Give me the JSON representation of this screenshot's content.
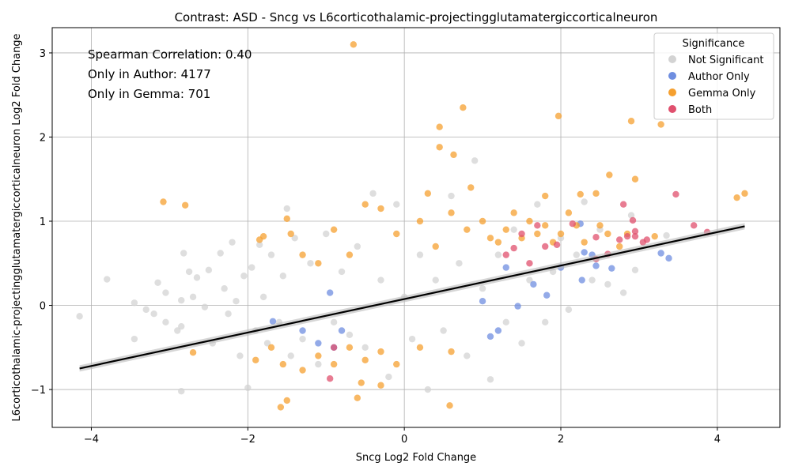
{
  "chart_data": {
    "type": "scatter",
    "title": "Contrast: ASD - Sncg vs L6corticothalamic-projectingglutamatergiccorticalneuron",
    "xlabel": "Sncg Log2 Fold Change",
    "ylabel": "L6corticothalamic-projectingglutamatergiccorticalneuron Log2 Fold Change",
    "xlim": [
      -4.5,
      4.8
    ],
    "ylim": [
      -1.45,
      3.3
    ],
    "xticks": [
      -4,
      -2,
      0,
      2,
      4
    ],
    "yticks": [
      -1,
      0,
      1,
      2,
      3
    ],
    "grid": true,
    "annotations": [
      "Spearman Correlation: 0.40",
      "Only in Author: 4177",
      "Only in Gemma: 701"
    ],
    "legend": {
      "title": "Significance",
      "position": "top-right",
      "entries": [
        "Not Significant",
        "Author Only",
        "Gemma Only",
        "Both"
      ]
    },
    "fit_line": {
      "x": [
        -4.15,
        4.35
      ],
      "y": [
        -0.75,
        0.94
      ]
    },
    "series": [
      {
        "name": "Not Significant",
        "color": "#d3d3d3",
        "points": [
          [
            -4.15,
            -0.13
          ],
          [
            -3.8,
            0.31
          ],
          [
            -3.45,
            0.03
          ],
          [
            -3.45,
            -0.4
          ],
          [
            -3.3,
            -0.05
          ],
          [
            -3.2,
            -0.1
          ],
          [
            -3.15,
            0.27
          ],
          [
            -3.05,
            0.15
          ],
          [
            -3.05,
            -0.2
          ],
          [
            -2.9,
            -0.3
          ],
          [
            -2.85,
            0.06
          ],
          [
            -2.85,
            -0.25
          ],
          [
            -2.82,
            0.62
          ],
          [
            -2.75,
            0.4
          ],
          [
            -2.7,
            0.1
          ],
          [
            -2.65,
            0.33
          ],
          [
            -2.55,
            -0.02
          ],
          [
            -2.5,
            0.42
          ],
          [
            -2.45,
            -0.45
          ],
          [
            -2.35,
            0.62
          ],
          [
            -2.3,
            0.2
          ],
          [
            -2.25,
            -0.1
          ],
          [
            -2.2,
            0.75
          ],
          [
            -2.15,
            0.05
          ],
          [
            -2.1,
            -0.6
          ],
          [
            -2.05,
            0.35
          ],
          [
            -2.0,
            -0.98
          ],
          [
            -1.95,
            0.45
          ],
          [
            -1.9,
            -0.3
          ],
          [
            -1.85,
            0.72
          ],
          [
            -1.8,
            0.1
          ],
          [
            -1.75,
            -0.45
          ],
          [
            -1.7,
            0.6
          ],
          [
            -1.6,
            -0.2
          ],
          [
            -1.55,
            0.35
          ],
          [
            -1.5,
            1.15
          ],
          [
            -1.45,
            -0.6
          ],
          [
            -1.4,
            0.8
          ],
          [
            -1.3,
            -0.4
          ],
          [
            -1.2,
            0.5
          ],
          [
            -1.1,
            -0.7
          ],
          [
            -1.0,
            0.85
          ],
          [
            -0.9,
            -0.2
          ],
          [
            -0.8,
            0.4
          ],
          [
            -0.7,
            -0.35
          ],
          [
            -0.6,
            0.7
          ],
          [
            -0.5,
            -0.5
          ],
          [
            -0.4,
            1.33
          ],
          [
            -0.3,
            0.3
          ],
          [
            -0.2,
            -0.85
          ],
          [
            -0.1,
            1.2
          ],
          [
            0.0,
            0.1
          ],
          [
            0.1,
            -0.4
          ],
          [
            0.2,
            0.6
          ],
          [
            0.3,
            -1.0
          ],
          [
            0.4,
            0.3
          ],
          [
            0.5,
            -0.3
          ],
          [
            0.6,
            1.3
          ],
          [
            0.7,
            0.5
          ],
          [
            0.8,
            -0.6
          ],
          [
            0.9,
            1.72
          ],
          [
            1.0,
            0.2
          ],
          [
            1.1,
            -0.88
          ],
          [
            1.2,
            0.6
          ],
          [
            1.3,
            -0.2
          ],
          [
            1.4,
            0.9
          ],
          [
            1.5,
            -0.45
          ],
          [
            1.6,
            0.3
          ],
          [
            1.7,
            1.2
          ],
          [
            1.8,
            -0.2
          ],
          [
            1.9,
            0.4
          ],
          [
            2.0,
            0.8
          ],
          [
            2.1,
            -0.05
          ],
          [
            2.2,
            0.6
          ],
          [
            2.3,
            1.23
          ],
          [
            2.4,
            0.3
          ],
          [
            2.5,
            0.9
          ],
          [
            2.6,
            0.25
          ],
          [
            2.8,
            0.15
          ],
          [
            2.9,
            1.07
          ],
          [
            2.95,
            0.42
          ],
          [
            3.35,
            0.83
          ],
          [
            -2.85,
            -1.02
          ]
        ]
      },
      {
        "name": "Author Only",
        "color": "#6f8ee0",
        "points": [
          [
            -1.68,
            -0.19
          ],
          [
            -1.3,
            -0.3
          ],
          [
            -1.1,
            -0.45
          ],
          [
            -0.9,
            -0.5
          ],
          [
            -0.95,
            0.15
          ],
          [
            -0.8,
            -0.3
          ],
          [
            1.0,
            0.05
          ],
          [
            1.1,
            -0.37
          ],
          [
            1.2,
            -0.3
          ],
          [
            1.3,
            0.45
          ],
          [
            1.45,
            -0.01
          ],
          [
            1.65,
            0.25
          ],
          [
            1.82,
            0.12
          ],
          [
            2.0,
            0.45
          ],
          [
            2.25,
            0.97
          ],
          [
            2.27,
            0.3
          ],
          [
            2.3,
            0.63
          ],
          [
            2.4,
            0.6
          ],
          [
            2.45,
            0.47
          ],
          [
            2.65,
            0.44
          ],
          [
            3.28,
            0.62
          ],
          [
            3.38,
            0.56
          ]
        ]
      },
      {
        "name": "Gemma Only",
        "color": "#f5a030",
        "points": [
          [
            -0.65,
            3.1
          ],
          [
            0.75,
            2.35
          ],
          [
            1.97,
            2.25
          ],
          [
            2.9,
            2.19
          ],
          [
            3.28,
            2.15
          ],
          [
            0.45,
            2.12
          ],
          [
            0.45,
            1.88
          ],
          [
            0.63,
            1.79
          ],
          [
            2.62,
            1.55
          ],
          [
            2.95,
            1.5
          ],
          [
            -3.08,
            1.23
          ],
          [
            -2.8,
            1.19
          ],
          [
            4.35,
            1.33
          ],
          [
            4.25,
            1.28
          ],
          [
            0.3,
            1.33
          ],
          [
            0.85,
            1.4
          ],
          [
            1.8,
            1.3
          ],
          [
            2.25,
            1.32
          ],
          [
            2.45,
            1.33
          ],
          [
            -1.5,
            1.03
          ],
          [
            -1.45,
            0.85
          ],
          [
            -1.5,
            -1.13
          ],
          [
            -1.58,
            -1.21
          ],
          [
            -0.6,
            -1.1
          ],
          [
            -0.55,
            -0.92
          ],
          [
            -0.3,
            -0.95
          ],
          [
            0.58,
            -1.19
          ],
          [
            -2.7,
            -0.56
          ],
          [
            -1.9,
            -0.65
          ],
          [
            -1.7,
            -0.5
          ],
          [
            -1.55,
            -0.7
          ],
          [
            -1.3,
            -0.77
          ],
          [
            -1.1,
            -0.6
          ],
          [
            -0.9,
            -0.7
          ],
          [
            -0.7,
            -0.5
          ],
          [
            -0.5,
            -0.65
          ],
          [
            -0.3,
            -0.55
          ],
          [
            -0.1,
            -0.7
          ],
          [
            0.2,
            -0.5
          ],
          [
            0.6,
            -0.55
          ],
          [
            -1.85,
            0.78
          ],
          [
            -1.8,
            0.82
          ],
          [
            -1.3,
            0.6
          ],
          [
            -1.1,
            0.5
          ],
          [
            -0.9,
            0.9
          ],
          [
            -0.7,
            0.6
          ],
          [
            -0.5,
            1.2
          ],
          [
            -0.3,
            1.15
          ],
          [
            -0.1,
            0.85
          ],
          [
            0.2,
            1.0
          ],
          [
            0.4,
            0.7
          ],
          [
            0.6,
            1.1
          ],
          [
            0.8,
            0.9
          ],
          [
            1.0,
            1.0
          ],
          [
            1.1,
            0.8
          ],
          [
            1.2,
            0.75
          ],
          [
            1.3,
            0.9
          ],
          [
            1.4,
            1.1
          ],
          [
            1.5,
            0.8
          ],
          [
            1.6,
            1.0
          ],
          [
            1.7,
            0.85
          ],
          [
            1.8,
            0.95
          ],
          [
            1.9,
            0.75
          ],
          [
            2.0,
            0.85
          ],
          [
            2.1,
            1.1
          ],
          [
            2.2,
            0.95
          ],
          [
            2.3,
            0.75
          ],
          [
            2.5,
            0.95
          ],
          [
            2.6,
            0.85
          ],
          [
            2.75,
            0.7
          ],
          [
            2.85,
            0.85
          ],
          [
            3.2,
            0.82
          ]
        ]
      },
      {
        "name": "Both",
        "color": "#e0506e",
        "points": [
          [
            -0.95,
            -0.87
          ],
          [
            -0.9,
            -0.5
          ],
          [
            1.3,
            0.6
          ],
          [
            1.4,
            0.68
          ],
          [
            1.5,
            0.85
          ],
          [
            1.6,
            0.5
          ],
          [
            1.7,
            0.95
          ],
          [
            1.8,
            0.7
          ],
          [
            1.95,
            0.72
          ],
          [
            2.15,
            0.97
          ],
          [
            2.45,
            0.55
          ],
          [
            2.45,
            0.81
          ],
          [
            2.6,
            0.61
          ],
          [
            2.75,
            0.78
          ],
          [
            2.8,
            1.2
          ],
          [
            2.85,
            0.82
          ],
          [
            2.92,
            1.01
          ],
          [
            2.95,
            0.88
          ],
          [
            2.95,
            0.82
          ],
          [
            3.1,
            0.78
          ],
          [
            3.05,
            0.75
          ],
          [
            3.47,
            1.32
          ],
          [
            3.7,
            0.95
          ],
          [
            3.87,
            0.87
          ]
        ]
      }
    ]
  }
}
